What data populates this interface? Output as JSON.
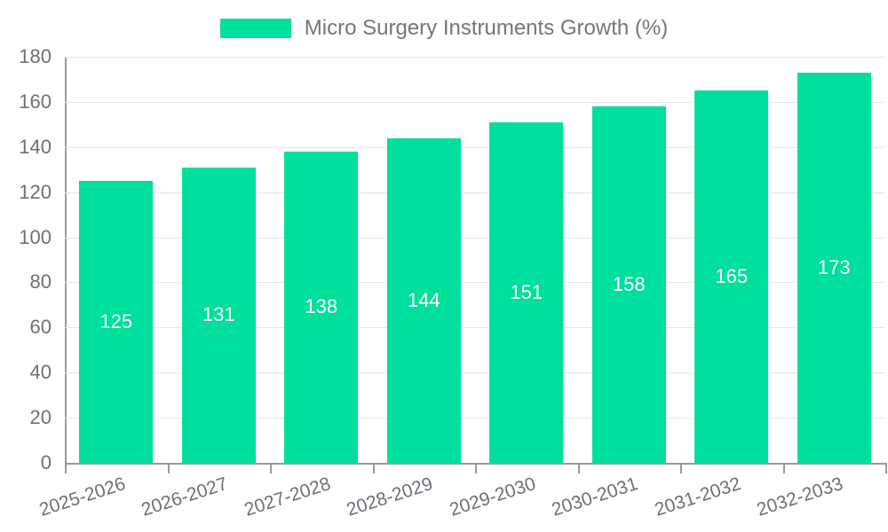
{
  "chart_data": {
    "type": "bar",
    "legend_label": "Micro Surgery Instruments Growth (%)",
    "categories": [
      "2025-2026",
      "2026-2027",
      "2027-2028",
      "2028-2029",
      "2029-2030",
      "2030-2031",
      "2031-2032",
      "2032-2033"
    ],
    "values": [
      125,
      131,
      138,
      144,
      151,
      158,
      165,
      173
    ],
    "title": "",
    "xlabel": "",
    "ylabel": "",
    "ylim": [
      0,
      180
    ],
    "ytick_step": 20,
    "grid": true,
    "legend_position": "top-center",
    "bar_label_position": "inside-center"
  },
  "colors": {
    "bar": "#00DF9B",
    "axis_line": "#9a9a9a",
    "grid_line": "#e6e6e6",
    "tick_label": "#6E7079",
    "legend_text": "#757575",
    "bar_label": "#FFFFFF",
    "background": "#FFFFFF"
  }
}
